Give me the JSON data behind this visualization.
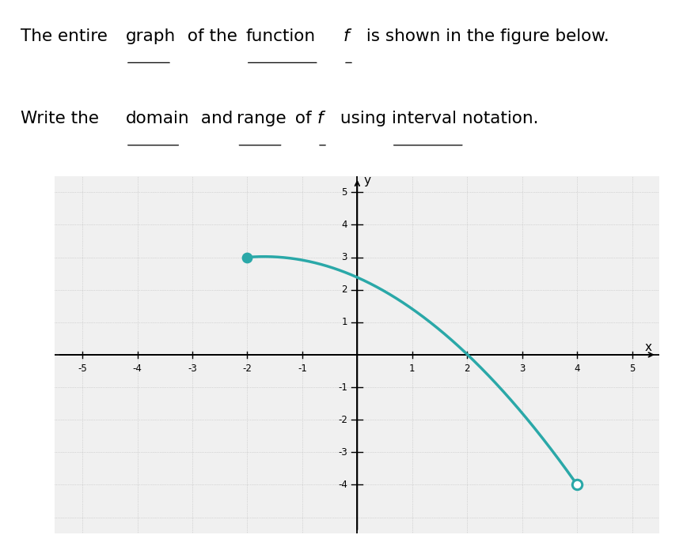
{
  "bg_color": "#ffffff",
  "plot_bg_color": "#f0f0f0",
  "grid_color": "#bbbbbb",
  "curve_color": "#2aa8a8",
  "closed_point": [
    -2,
    3
  ],
  "open_point": [
    4,
    -4
  ],
  "xlim": [
    -5.5,
    5.5
  ],
  "ylim": [
    -5.5,
    5.5
  ],
  "xticks": [
    -5,
    -4,
    -3,
    -2,
    -1,
    1,
    2,
    3,
    4,
    5
  ],
  "yticks": [
    -4,
    -3,
    -2,
    -1,
    1,
    2,
    3,
    4,
    5
  ],
  "curve_linewidth": 2.5,
  "dot_size": 80,
  "bezier_P0": [
    -2,
    3
  ],
  "bezier_P1": [
    -0.5,
    3.2
  ],
  "bezier_P2": [
    1.5,
    2.0
  ],
  "bezier_P3": [
    4,
    -4
  ],
  "line1_plain": [
    "The entire ",
    " of the ",
    " ",
    " is shown in the figure below."
  ],
  "line1_underline": [
    "graph",
    "function",
    "f"
  ],
  "line2_plain": [
    "Write the ",
    " and ",
    " of ",
    " using ",
    " notation."
  ],
  "line2_underline": [
    "domain",
    "range",
    "f",
    "interval"
  ],
  "font_size": 15.5
}
